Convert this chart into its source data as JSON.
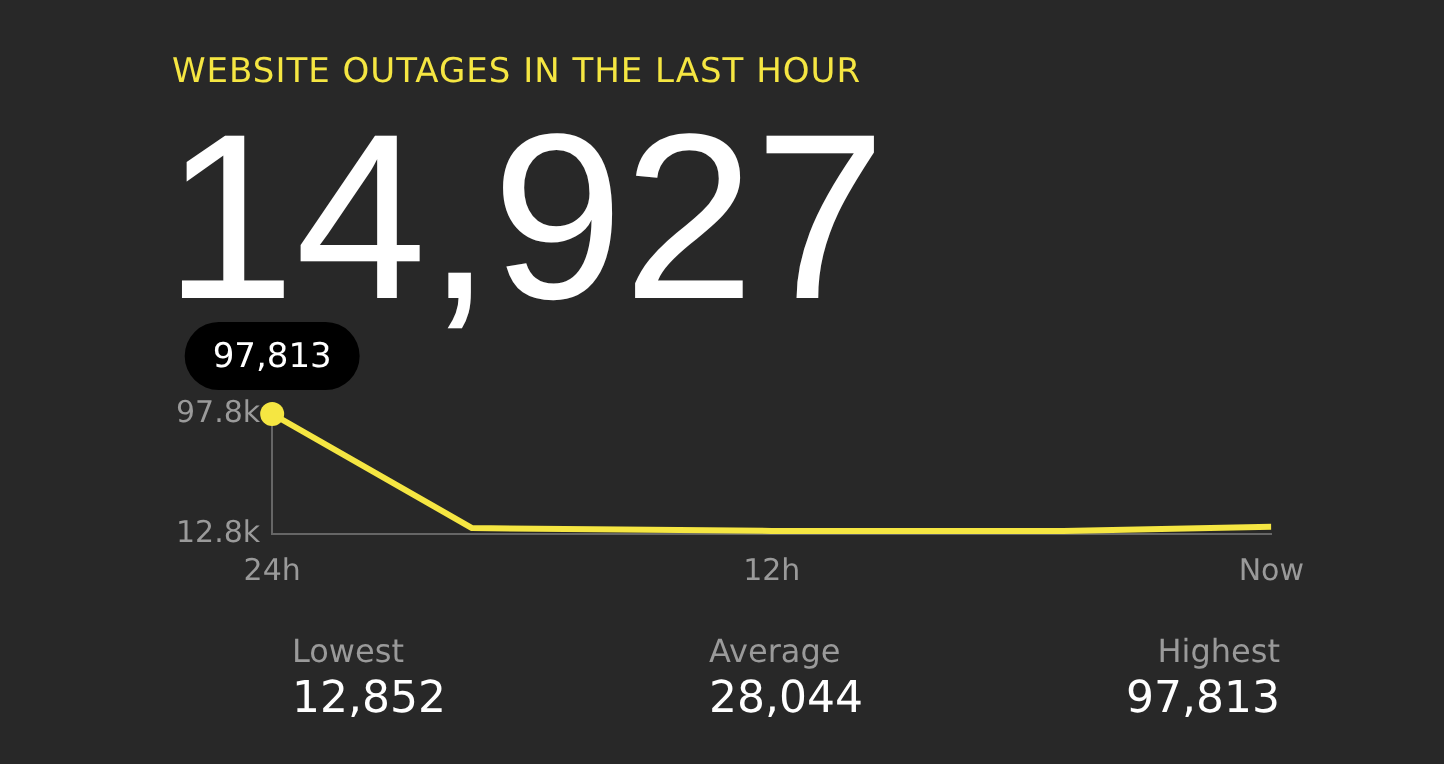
{
  "chart_data": {
    "type": "line",
    "title": "WEBSITE OUTAGES IN THE LAST HOUR",
    "subtitle": "14,927",
    "x": [
      -24,
      -19.2,
      -12,
      -5,
      0
    ],
    "series": [
      {
        "color": "#f5e642",
        "values": [
          97813,
          17000,
          15000,
          15000,
          18000
        ]
      }
    ],
    "xlim": [
      -24,
      0
    ],
    "xticks": [
      {
        "value": -24,
        "label": "24h"
      },
      {
        "value": -12,
        "label": "12h"
      },
      {
        "value": 0,
        "label": "Now"
      }
    ],
    "ylim": [
      12800,
      97813
    ],
    "yticks": [
      {
        "value": 12800,
        "label": "12.8k"
      },
      {
        "value": 97800,
        "label": "97.8k"
      }
    ],
    "grid": false,
    "legend": false,
    "annotations": [
      {
        "text": "97,813",
        "x": -24,
        "y": 97813
      },
      "Lowest",
      "12,852",
      "Average",
      "28,044",
      "Highest",
      "97,813"
    ]
  }
}
